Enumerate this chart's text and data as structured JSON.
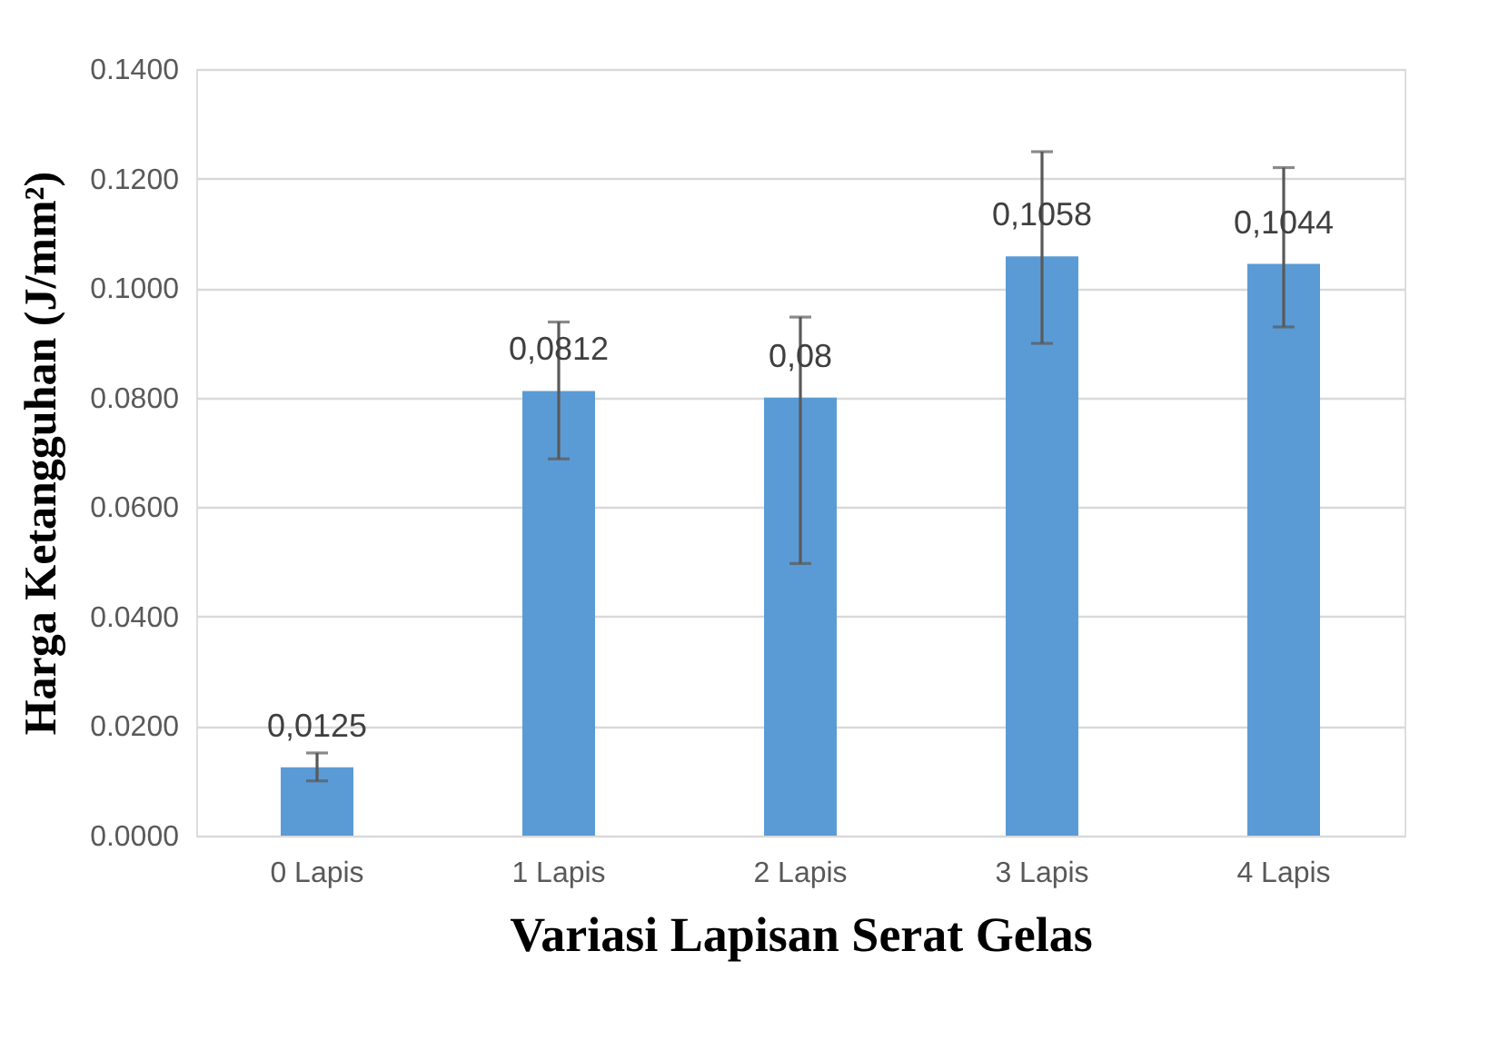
{
  "chart_data": {
    "type": "bar",
    "xlabel": "Variasi Lapisan Serat Gelas",
    "ylabel": "Harga Ketangguhan (J/mm²)",
    "categories": [
      "0 Lapis",
      "1 Lapis",
      "2 Lapis",
      "3 Lapis",
      "4 Lapis"
    ],
    "values": [
      0.0125,
      0.0812,
      0.08,
      0.1058,
      0.1044
    ],
    "value_labels": [
      "0,0125",
      "0,0812",
      "0,08",
      "0,1058",
      "0,1044"
    ],
    "errors": [
      [
        0.01,
        0.0151
      ],
      [
        0.0688,
        0.0938
      ],
      [
        0.0497,
        0.0947
      ],
      [
        0.0899,
        0.1249
      ],
      [
        0.0929,
        0.122
      ]
    ],
    "color": "#5b9bd5",
    "ylim": [
      0,
      0.14
    ],
    "yticks": [
      {
        "value": 0,
        "label": "0.0000"
      },
      {
        "value": 0.02,
        "label": "0.0200"
      },
      {
        "value": 0.04,
        "label": "0.0400"
      },
      {
        "value": 0.06,
        "label": "0.0600"
      },
      {
        "value": 0.08,
        "label": "0.0800"
      },
      {
        "value": 0.1,
        "label": "0.1000"
      },
      {
        "value": 0.12,
        "label": "0.1200"
      },
      {
        "value": 0.14,
        "label": "0.1400"
      }
    ],
    "grid": "y"
  }
}
